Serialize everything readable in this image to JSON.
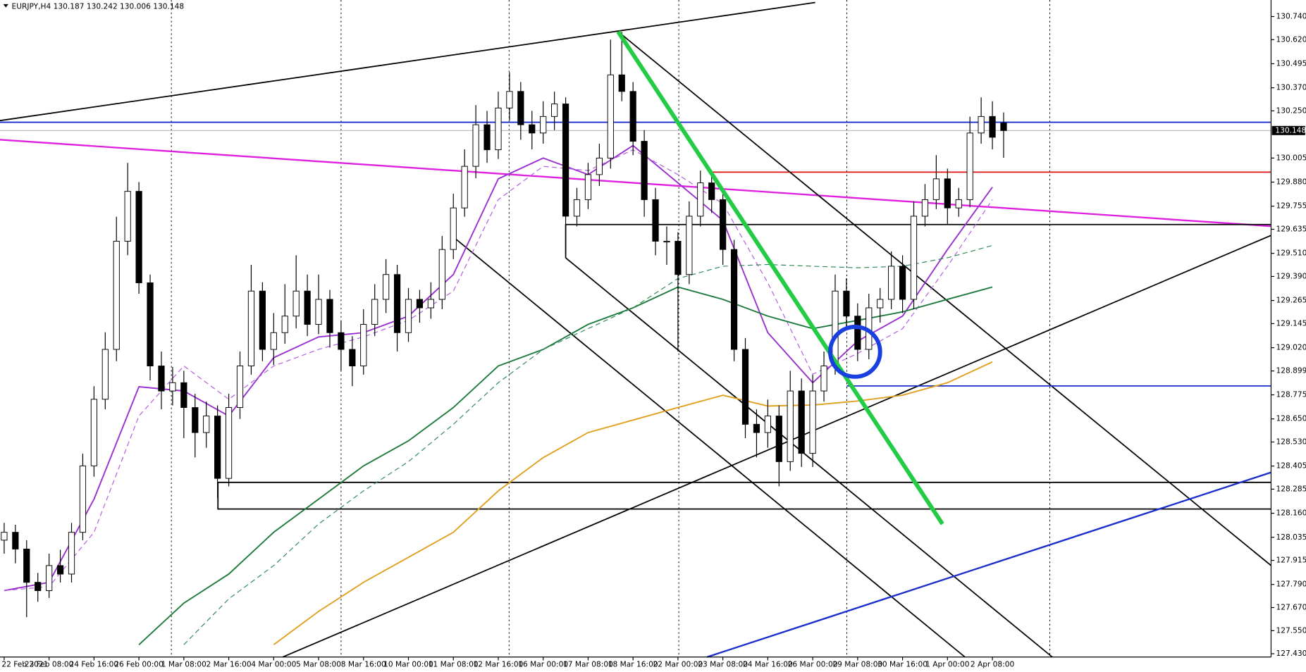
{
  "chart_data": {
    "type": "candlestick",
    "title": "EURJPY,H4  130.187 130.242 130.006 130.148",
    "categories": [
      "22 Feb 2021",
      "23 Feb 08:00",
      "24 Feb 16:00",
      "26 Feb 00:00",
      "1 Mar 08:00",
      "2 Mar 16:00",
      "4 Mar 00:00",
      "5 Mar 08:00",
      "8 Mar 16:00",
      "10 Mar 00:00",
      "11 Mar 08:00",
      "12 Mar 16:00",
      "16 Mar 00:00",
      "17 Mar 08:00",
      "18 Mar 16:00",
      "22 Mar 00:00",
      "23 Mar 08:00",
      "24 Mar 16:00",
      "26 Mar 00:00",
      "29 Mar 08:00",
      "30 Mar 16:00",
      "1 Apr 00:00",
      "2 Apr 08:00"
    ],
    "candles": [
      [
        128.02,
        128.11,
        127.95,
        128.061
      ],
      [
        128.061,
        128.1,
        127.9,
        127.974
      ],
      [
        127.974,
        128.02,
        127.62,
        127.801
      ],
      [
        127.801,
        127.85,
        127.7,
        127.758
      ],
      [
        127.758,
        127.95,
        127.72,
        127.888
      ],
      [
        127.888,
        127.97,
        127.8,
        127.844
      ],
      [
        127.844,
        128.11,
        127.8,
        128.061
      ],
      [
        128.061,
        128.47,
        128.02,
        128.406
      ],
      [
        128.406,
        128.82,
        128.35,
        128.752
      ],
      [
        128.752,
        129.1,
        128.7,
        129.011
      ],
      [
        129.011,
        129.7,
        128.95,
        129.573
      ],
      [
        129.573,
        129.98,
        129.5,
        129.832
      ],
      [
        129.832,
        129.88,
        129.3,
        129.357
      ],
      [
        129.357,
        129.4,
        128.85,
        128.925
      ],
      [
        128.925,
        129.0,
        128.7,
        128.795
      ],
      [
        128.795,
        128.92,
        128.72,
        128.838
      ],
      [
        128.838,
        128.9,
        128.55,
        128.709
      ],
      [
        128.709,
        128.78,
        128.45,
        128.579
      ],
      [
        128.579,
        128.74,
        128.5,
        128.665
      ],
      [
        128.665,
        128.72,
        128.24,
        128.341
      ],
      [
        128.341,
        128.78,
        128.3,
        128.709
      ],
      [
        128.709,
        129.0,
        128.65,
        128.925
      ],
      [
        128.925,
        129.45,
        128.88,
        129.314
      ],
      [
        129.314,
        129.36,
        128.95,
        129.011
      ],
      [
        129.011,
        129.2,
        128.93,
        129.098
      ],
      [
        129.098,
        129.35,
        129.04,
        129.184
      ],
      [
        129.184,
        129.5,
        129.12,
        129.314
      ],
      [
        129.314,
        129.4,
        129.08,
        129.141
      ],
      [
        129.141,
        129.4,
        129.09,
        129.271
      ],
      [
        129.271,
        129.32,
        129.02,
        129.098
      ],
      [
        129.098,
        129.16,
        128.9,
        129.011
      ],
      [
        129.011,
        129.08,
        128.82,
        128.925
      ],
      [
        128.925,
        129.22,
        128.88,
        129.141
      ],
      [
        129.141,
        129.35,
        129.08,
        129.271
      ],
      [
        129.271,
        129.48,
        129.2,
        129.4
      ],
      [
        129.4,
        129.45,
        129.0,
        129.098
      ],
      [
        129.098,
        129.33,
        129.05,
        129.271
      ],
      [
        129.271,
        129.32,
        129.15,
        129.227
      ],
      [
        129.227,
        129.36,
        129.17,
        129.271
      ],
      [
        129.271,
        129.6,
        129.22,
        129.53
      ],
      [
        129.53,
        129.82,
        129.48,
        129.746
      ],
      [
        129.746,
        130.05,
        129.7,
        129.962
      ],
      [
        129.962,
        130.28,
        129.9,
        130.178
      ],
      [
        130.178,
        130.25,
        129.98,
        130.048
      ],
      [
        130.048,
        130.35,
        130.0,
        130.265
      ],
      [
        130.265,
        130.45,
        130.2,
        130.351
      ],
      [
        130.351,
        130.4,
        130.1,
        130.178
      ],
      [
        130.178,
        130.25,
        130.05,
        130.135
      ],
      [
        130.135,
        130.3,
        130.08,
        130.221
      ],
      [
        130.221,
        130.35,
        130.15,
        130.286
      ],
      [
        130.286,
        130.32,
        129.63,
        129.703
      ],
      [
        129.703,
        129.85,
        129.65,
        129.789
      ],
      [
        129.789,
        129.98,
        129.74,
        129.919
      ],
      [
        129.919,
        130.08,
        129.86,
        130.005
      ],
      [
        130.005,
        130.62,
        129.95,
        130.437
      ],
      [
        130.437,
        130.66,
        130.3,
        130.351
      ],
      [
        130.351,
        130.4,
        130.02,
        130.092
      ],
      [
        130.092,
        130.15,
        129.7,
        129.789
      ],
      [
        129.789,
        129.85,
        129.5,
        129.573
      ],
      [
        129.573,
        129.65,
        129.45,
        129.573
      ],
      [
        129.573,
        129.62,
        129.0,
        129.4
      ],
      [
        129.4,
        129.78,
        129.35,
        129.703
      ],
      [
        129.703,
        129.94,
        129.65,
        129.876
      ],
      [
        129.876,
        129.93,
        129.72,
        129.789
      ],
      [
        129.789,
        129.82,
        129.45,
        129.53
      ],
      [
        129.53,
        129.58,
        128.95,
        129.011
      ],
      [
        129.011,
        129.07,
        128.55,
        128.622
      ],
      [
        128.622,
        128.7,
        128.45,
        128.579
      ],
      [
        128.579,
        128.75,
        128.5,
        128.665
      ],
      [
        128.665,
        128.72,
        128.3,
        128.428
      ],
      [
        128.428,
        128.9,
        128.38,
        128.795
      ],
      [
        128.795,
        128.86,
        128.4,
        128.471
      ],
      [
        128.471,
        128.88,
        128.4,
        128.795
      ],
      [
        128.795,
        129.0,
        128.74,
        128.925
      ],
      [
        128.925,
        129.4,
        128.88,
        129.314
      ],
      [
        129.314,
        129.38,
        129.12,
        129.184
      ],
      [
        129.184,
        129.25,
        128.95,
        129.011
      ],
      [
        129.011,
        129.3,
        128.96,
        129.227
      ],
      [
        129.227,
        129.33,
        129.15,
        129.271
      ],
      [
        129.271,
        129.52,
        129.22,
        129.443
      ],
      [
        129.443,
        129.5,
        129.2,
        129.271
      ],
      [
        129.271,
        129.78,
        129.22,
        129.703
      ],
      [
        129.703,
        129.87,
        129.65,
        129.789
      ],
      [
        129.789,
        130.02,
        129.74,
        129.897
      ],
      [
        129.897,
        129.95,
        129.66,
        129.746
      ],
      [
        129.746,
        129.85,
        129.7,
        129.789
      ],
      [
        129.789,
        130.22,
        129.75,
        130.135
      ],
      [
        130.135,
        130.32,
        130.08,
        130.221
      ],
      [
        130.221,
        130.3,
        130.05,
        130.113
      ],
      [
        130.187,
        130.242,
        130.006,
        130.148
      ]
    ],
    "bull_color": "#ffffff",
    "bear_color": "#000000",
    "series": [
      {
        "color": "#9a2fd0",
        "dash": false,
        "values": [
          127.758,
          127.801,
          128.233,
          128.817,
          128.795,
          128.665,
          128.968,
          129.076,
          129.098,
          129.184,
          129.4,
          129.897,
          130.005,
          129.919,
          130.07,
          129.876,
          129.681,
          129.098,
          128.838,
          129.054,
          129.184,
          129.53,
          129.854
        ]
      },
      {
        "color": "#b35ce0",
        "dash": true,
        "values": [
          127.758,
          127.779,
          128.061,
          128.665,
          128.925,
          128.752,
          128.925,
          129.011,
          129.076,
          129.162,
          129.314,
          129.789,
          129.962,
          129.94,
          130.048,
          129.919,
          129.768,
          129.357,
          128.882,
          128.99,
          129.119,
          129.443,
          129.789
        ]
      },
      {
        "color": "#1e7a3c",
        "dash": false,
        "values": [
          null,
          null,
          null,
          127.477,
          127.693,
          127.844,
          128.061,
          128.233,
          128.406,
          128.536,
          128.709,
          128.925,
          129.011,
          129.141,
          129.227,
          129.335,
          129.271,
          129.184,
          129.119,
          129.162,
          129.206,
          129.271,
          129.335
        ]
      },
      {
        "color": "#2e8b57",
        "dash": true,
        "values": [
          null,
          null,
          null,
          null,
          127.477,
          127.715,
          127.888,
          128.104,
          128.276,
          128.428,
          128.622,
          128.838,
          129.011,
          129.119,
          129.227,
          129.379,
          129.443,
          129.452,
          129.443,
          129.435,
          129.443,
          129.487,
          129.551
        ]
      },
      {
        "color": "#e0a020",
        "dash": false,
        "values": [
          null,
          null,
          null,
          null,
          null,
          null,
          127.477,
          127.65,
          127.801,
          127.931,
          128.061,
          128.276,
          128.449,
          128.579,
          128.644,
          128.709,
          128.773,
          128.717,
          128.722,
          128.743,
          128.773,
          128.838,
          128.946
        ]
      }
    ],
    "ylim": [
      127.413,
      130.826
    ],
    "yticks": [
      {
        "value": 130.74,
        "label": "130.740"
      },
      {
        "value": 130.62,
        "label": "130.620"
      },
      {
        "value": 130.495,
        "label": "130.495"
      },
      {
        "value": 130.37,
        "label": "130.370"
      },
      {
        "value": 130.25,
        "label": "130.250"
      },
      {
        "value": 130.005,
        "label": "130.005"
      },
      {
        "value": 129.88,
        "label": "129.880"
      },
      {
        "value": 129.755,
        "label": "129.755"
      },
      {
        "value": 129.635,
        "label": "129.635"
      },
      {
        "value": 129.51,
        "label": "129.510"
      },
      {
        "value": 129.39,
        "label": "129.390"
      },
      {
        "value": 129.265,
        "label": "129.265"
      },
      {
        "value": 129.145,
        "label": "129.145"
      },
      {
        "value": 129.02,
        "label": "129.020"
      },
      {
        "value": 128.899,
        "label": "128.899"
      },
      {
        "value": 128.775,
        "label": "128.775"
      },
      {
        "value": 128.65,
        "label": "128.650"
      },
      {
        "value": 128.53,
        "label": "128.530"
      },
      {
        "value": 128.405,
        "label": "128.405"
      },
      {
        "value": 128.285,
        "label": "128.285"
      },
      {
        "value": 128.16,
        "label": "128.160"
      },
      {
        "value": 128.035,
        "label": "128.035"
      },
      {
        "value": 127.915,
        "label": "127.915"
      },
      {
        "value": 127.79,
        "label": "127.790"
      },
      {
        "value": 127.67,
        "label": "127.670"
      },
      {
        "value": 127.55,
        "label": "127.550"
      },
      {
        "value": 127.43,
        "label": "127.430"
      }
    ],
    "current_price": {
      "value": 130.148,
      "label": "130.148"
    }
  }
}
